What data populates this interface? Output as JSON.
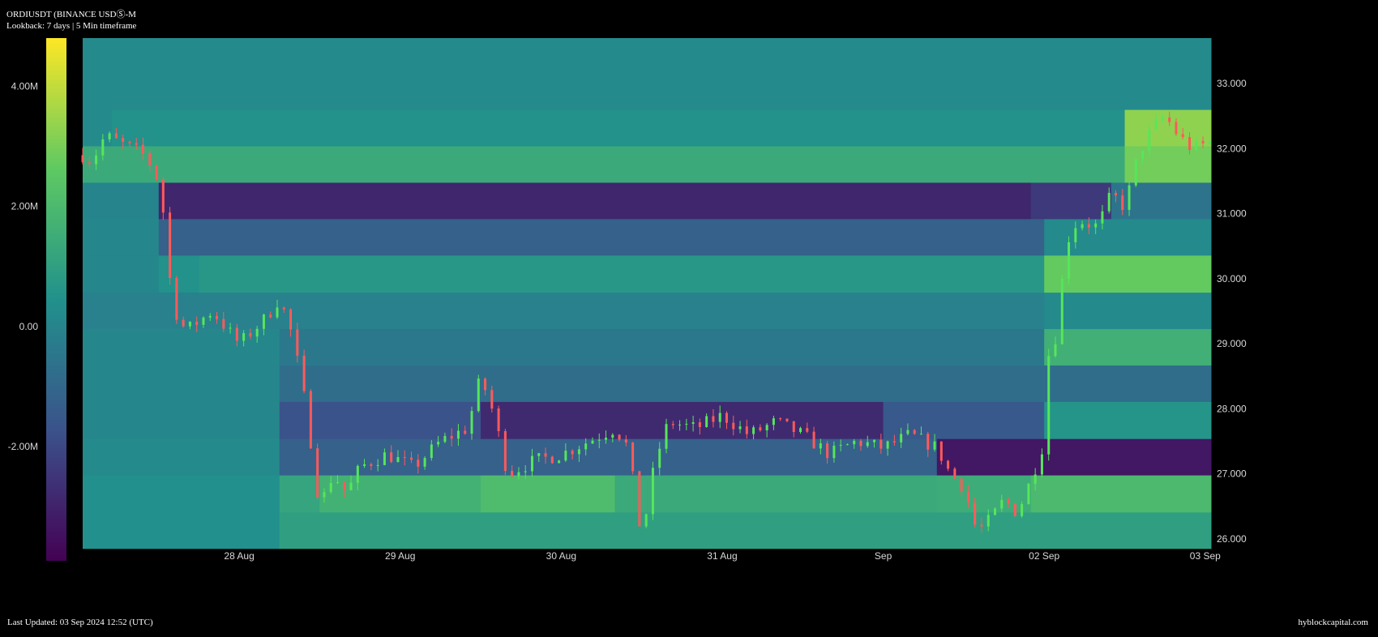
{
  "header": {
    "title": "ORDIUSDT (BINANCE USDⓈ-M",
    "subtitle": "Lookback: 7 days | 5 Min timeframe"
  },
  "footer": {
    "last_updated": "Last Updated: 03 Sep 2024 12:52 (UTC)",
    "brand": "hyblockcapital.com"
  },
  "colors": {
    "background": "#000000",
    "candle_up": "#56e65a",
    "candle_down": "#ff5a5a",
    "colorscale": [
      "#440154",
      "#3b528b",
      "#21918c",
      "#5ec962",
      "#fde725"
    ]
  },
  "chart_data": {
    "type": "heatmap",
    "title": "",
    "x_ticks": [
      "28 Aug",
      "29 Aug",
      "30 Aug",
      "31 Aug",
      "Sep",
      "02 Sep",
      "03 Sep"
    ],
    "x_range": [
      "2024-08-27 12:40",
      "2024-09-03 12:52"
    ],
    "y_ticks": [
      "26.000",
      "27.000",
      "28.000",
      "29.000",
      "30.000",
      "31.000",
      "32.000",
      "33.000"
    ],
    "y_range": [
      25.85,
      33.7
    ],
    "colorbar": {
      "ticks": [
        "4.00M",
        "2.00M",
        "0.00",
        "-2.00M"
      ],
      "tick_values": [
        4000000,
        2000000,
        0,
        -2000000
      ],
      "range": [
        -3900000,
        4800000
      ]
    },
    "price_bands": [
      25.85,
      26.41,
      26.98,
      27.54,
      28.11,
      28.67,
      29.23,
      29.79,
      30.36,
      30.92,
      31.48,
      32.04,
      32.6,
      33.7
    ],
    "heat_segments": [
      {
        "band": 0,
        "start": "2024-08-27 12:40",
        "end": "2024-08-28 18:00",
        "value": 400000
      },
      {
        "band": 0,
        "start": "2024-08-28 18:00",
        "end": "2024-09-03 12:52",
        "value": 1000000
      },
      {
        "band": 1,
        "start": "2024-08-27 12:40",
        "end": "2024-08-28 18:00",
        "value": 400000
      },
      {
        "band": 1,
        "start": "2024-08-28 18:00",
        "end": "2024-08-29 00:00",
        "value": 1200000
      },
      {
        "band": 1,
        "start": "2024-08-29 00:00",
        "end": "2024-08-30 00:00",
        "value": 1700000
      },
      {
        "band": 1,
        "start": "2024-08-30 00:00",
        "end": "2024-08-30 20:00",
        "value": 2100000
      },
      {
        "band": 1,
        "start": "2024-08-30 20:00",
        "end": "2024-09-01 20:00",
        "value": 1400000
      },
      {
        "band": 1,
        "start": "2024-09-01 20:00",
        "end": "2024-09-02 10:00",
        "value": 1500000
      },
      {
        "band": 1,
        "start": "2024-09-02 10:00",
        "end": "2024-09-03 12:52",
        "value": 2000000
      },
      {
        "band": 2,
        "start": "2024-08-27 12:40",
        "end": "2024-08-28 18:00",
        "value": 200000
      },
      {
        "band": 2,
        "start": "2024-08-28 18:00",
        "end": "2024-09-01 20:00",
        "value": -1200000
      },
      {
        "band": 2,
        "start": "2024-09-01 20:00",
        "end": "2024-09-03 12:52",
        "value": -3300000
      },
      {
        "band": 3,
        "start": "2024-08-27 12:40",
        "end": "2024-08-28 18:00",
        "value": 100000
      },
      {
        "band": 3,
        "start": "2024-08-28 18:00",
        "end": "2024-08-30 00:00",
        "value": -1700000
      },
      {
        "band": 3,
        "start": "2024-08-30 00:00",
        "end": "2024-09-01 12:00",
        "value": -2800000
      },
      {
        "band": 3,
        "start": "2024-09-01 12:00",
        "end": "2024-09-02 12:00",
        "value": -1500000
      },
      {
        "band": 3,
        "start": "2024-09-02 12:00",
        "end": "2024-09-03 12:52",
        "value": 600000
      },
      {
        "band": 4,
        "start": "2024-08-27 12:40",
        "end": "2024-08-28 18:00",
        "value": 100000
      },
      {
        "band": 4,
        "start": "2024-08-28 18:00",
        "end": "2024-09-03 12:52",
        "value": -800000
      },
      {
        "band": 5,
        "start": "2024-08-27 12:40",
        "end": "2024-08-28 18:00",
        "value": 100000
      },
      {
        "band": 5,
        "start": "2024-08-28 18:00",
        "end": "2024-09-02 12:00",
        "value": -400000
      },
      {
        "band": 5,
        "start": "2024-09-02 12:00",
        "end": "2024-09-03 12:52",
        "value": 1600000
      },
      {
        "band": 6,
        "start": "2024-08-27 12:40",
        "end": "2024-09-02 12:00",
        "value": -100000
      },
      {
        "band": 6,
        "start": "2024-09-02 12:00",
        "end": "2024-09-03 12:52",
        "value": 200000
      },
      {
        "band": 7,
        "start": "2024-08-27 12:40",
        "end": "2024-08-28 00:00",
        "value": 100000
      },
      {
        "band": 7,
        "start": "2024-08-28 00:00",
        "end": "2024-08-28 06:00",
        "value": 500000
      },
      {
        "band": 7,
        "start": "2024-08-28 06:00",
        "end": "2024-09-02 12:00",
        "value": 700000
      },
      {
        "band": 7,
        "start": "2024-09-02 12:00",
        "end": "2024-09-03 12:52",
        "value": 2700000
      },
      {
        "band": 8,
        "start": "2024-08-27 12:40",
        "end": "2024-08-28 00:00",
        "value": 100000
      },
      {
        "band": 8,
        "start": "2024-08-28 00:00",
        "end": "2024-09-02 12:00",
        "value": -1200000
      },
      {
        "band": 8,
        "start": "2024-09-02 12:00",
        "end": "2024-09-03 12:52",
        "value": 200000
      },
      {
        "band": 9,
        "start": "2024-08-27 12:40",
        "end": "2024-08-28 00:00",
        "value": 0
      },
      {
        "band": 9,
        "start": "2024-08-28 00:00",
        "end": "2024-09-02 10:00",
        "value": -2900000
      },
      {
        "band": 9,
        "start": "2024-09-02 10:00",
        "end": "2024-09-02 22:00",
        "value": -2400000
      },
      {
        "band": 9,
        "start": "2024-09-02 22:00",
        "end": "2024-09-03 12:52",
        "value": -600000
      },
      {
        "band": 10,
        "start": "2024-08-27 12:40",
        "end": "2024-09-03 00:00",
        "value": 1400000
      },
      {
        "band": 10,
        "start": "2024-09-03 00:00",
        "end": "2024-09-03 12:52",
        "value": 2900000
      },
      {
        "band": 11,
        "start": "2024-08-27 12:40",
        "end": "2024-08-27 17:00",
        "value": 200000
      },
      {
        "band": 11,
        "start": "2024-08-27 17:00",
        "end": "2024-09-03 00:00",
        "value": 500000
      },
      {
        "band": 11,
        "start": "2024-09-03 00:00",
        "end": "2024-09-03 12:52",
        "value": 3300000
      },
      {
        "band": 12,
        "start": "2024-08-27 12:40",
        "end": "2024-09-03 12:52",
        "value": 200000
      }
    ],
    "price_path": [
      [
        "2024-08-27 12:40",
        31.9
      ],
      [
        "2024-08-27 14:00",
        31.8
      ],
      [
        "2024-08-27 16:00",
        32.2
      ],
      [
        "2024-08-27 18:00",
        32.1
      ],
      [
        "2024-08-27 22:00",
        31.9
      ],
      [
        "2024-08-28 00:00",
        31.5
      ],
      [
        "2024-08-28 01:00",
        30.8
      ],
      [
        "2024-08-28 02:00",
        29.6
      ],
      [
        "2024-08-28 04:00",
        29.2
      ],
      [
        "2024-08-28 08:00",
        29.5
      ],
      [
        "2024-08-28 12:00",
        29.0
      ],
      [
        "2024-08-28 16:00",
        29.4
      ],
      [
        "2024-08-28 18:00",
        29.7
      ],
      [
        "2024-08-28 20:00",
        29.1
      ],
      [
        "2024-08-28 22:00",
        28.0
      ],
      [
        "2024-08-29 00:00",
        26.5
      ],
      [
        "2024-08-29 02:00",
        27.0
      ],
      [
        "2024-08-29 04:00",
        26.7
      ],
      [
        "2024-08-29 06:00",
        27.1
      ],
      [
        "2024-08-29 10:00",
        27.3
      ],
      [
        "2024-08-29 14:00",
        27.1
      ],
      [
        "2024-08-29 18:00",
        27.5
      ],
      [
        "2024-08-29 22:00",
        27.7
      ],
      [
        "2024-08-30 00:00",
        28.5
      ],
      [
        "2024-08-30 02:00",
        27.9
      ],
      [
        "2024-08-30 04:00",
        27.0
      ],
      [
        "2024-08-30 08:00",
        27.2
      ],
      [
        "2024-08-30 12:00",
        27.3
      ],
      [
        "2024-08-30 16:00",
        27.5
      ],
      [
        "2024-08-30 20:00",
        27.7
      ],
      [
        "2024-08-30 22:00",
        27.4
      ],
      [
        "2024-08-31 00:00",
        26.0
      ],
      [
        "2024-08-31 02:00",
        27.2
      ],
      [
        "2024-08-31 04:00",
        27.8
      ],
      [
        "2024-08-31 08:00",
        27.7
      ],
      [
        "2024-08-31 12:00",
        27.9
      ],
      [
        "2024-08-31 16:00",
        27.6
      ],
      [
        "2024-08-31 20:00",
        27.8
      ],
      [
        "2024-09-01 00:00",
        27.6
      ],
      [
        "2024-09-01 04:00",
        27.3
      ],
      [
        "2024-09-01 08:00",
        27.5
      ],
      [
        "2024-09-01 12:00",
        27.4
      ],
      [
        "2024-09-01 16:00",
        27.6
      ],
      [
        "2024-09-01 20:00",
        27.4
      ],
      [
        "2024-09-01 22:00",
        27.0
      ],
      [
        "2024-09-02 00:00",
        26.8
      ],
      [
        "2024-09-02 02:00",
        26.1
      ],
      [
        "2024-09-02 04:00",
        26.3
      ],
      [
        "2024-09-02 06:00",
        26.6
      ],
      [
        "2024-09-02 08:00",
        26.4
      ],
      [
        "2024-09-02 10:00",
        26.9
      ],
      [
        "2024-09-02 12:00",
        27.5
      ],
      [
        "2024-09-02 13:00",
        29.5
      ],
      [
        "2024-09-02 14:00",
        28.9
      ],
      [
        "2024-09-02 15:00",
        30.5
      ],
      [
        "2024-09-02 17:00",
        30.9
      ],
      [
        "2024-09-02 20:00",
        30.8
      ],
      [
        "2024-09-02 22:00",
        31.3
      ],
      [
        "2024-09-03 00:00",
        31.1
      ],
      [
        "2024-09-03 02:00",
        31.9
      ],
      [
        "2024-09-03 04:00",
        32.3
      ],
      [
        "2024-09-03 06:00",
        32.5
      ],
      [
        "2024-09-03 08:00",
        32.2
      ],
      [
        "2024-09-03 10:00",
        32.0
      ],
      [
        "2024-09-03 12:52",
        32.1
      ]
    ]
  }
}
